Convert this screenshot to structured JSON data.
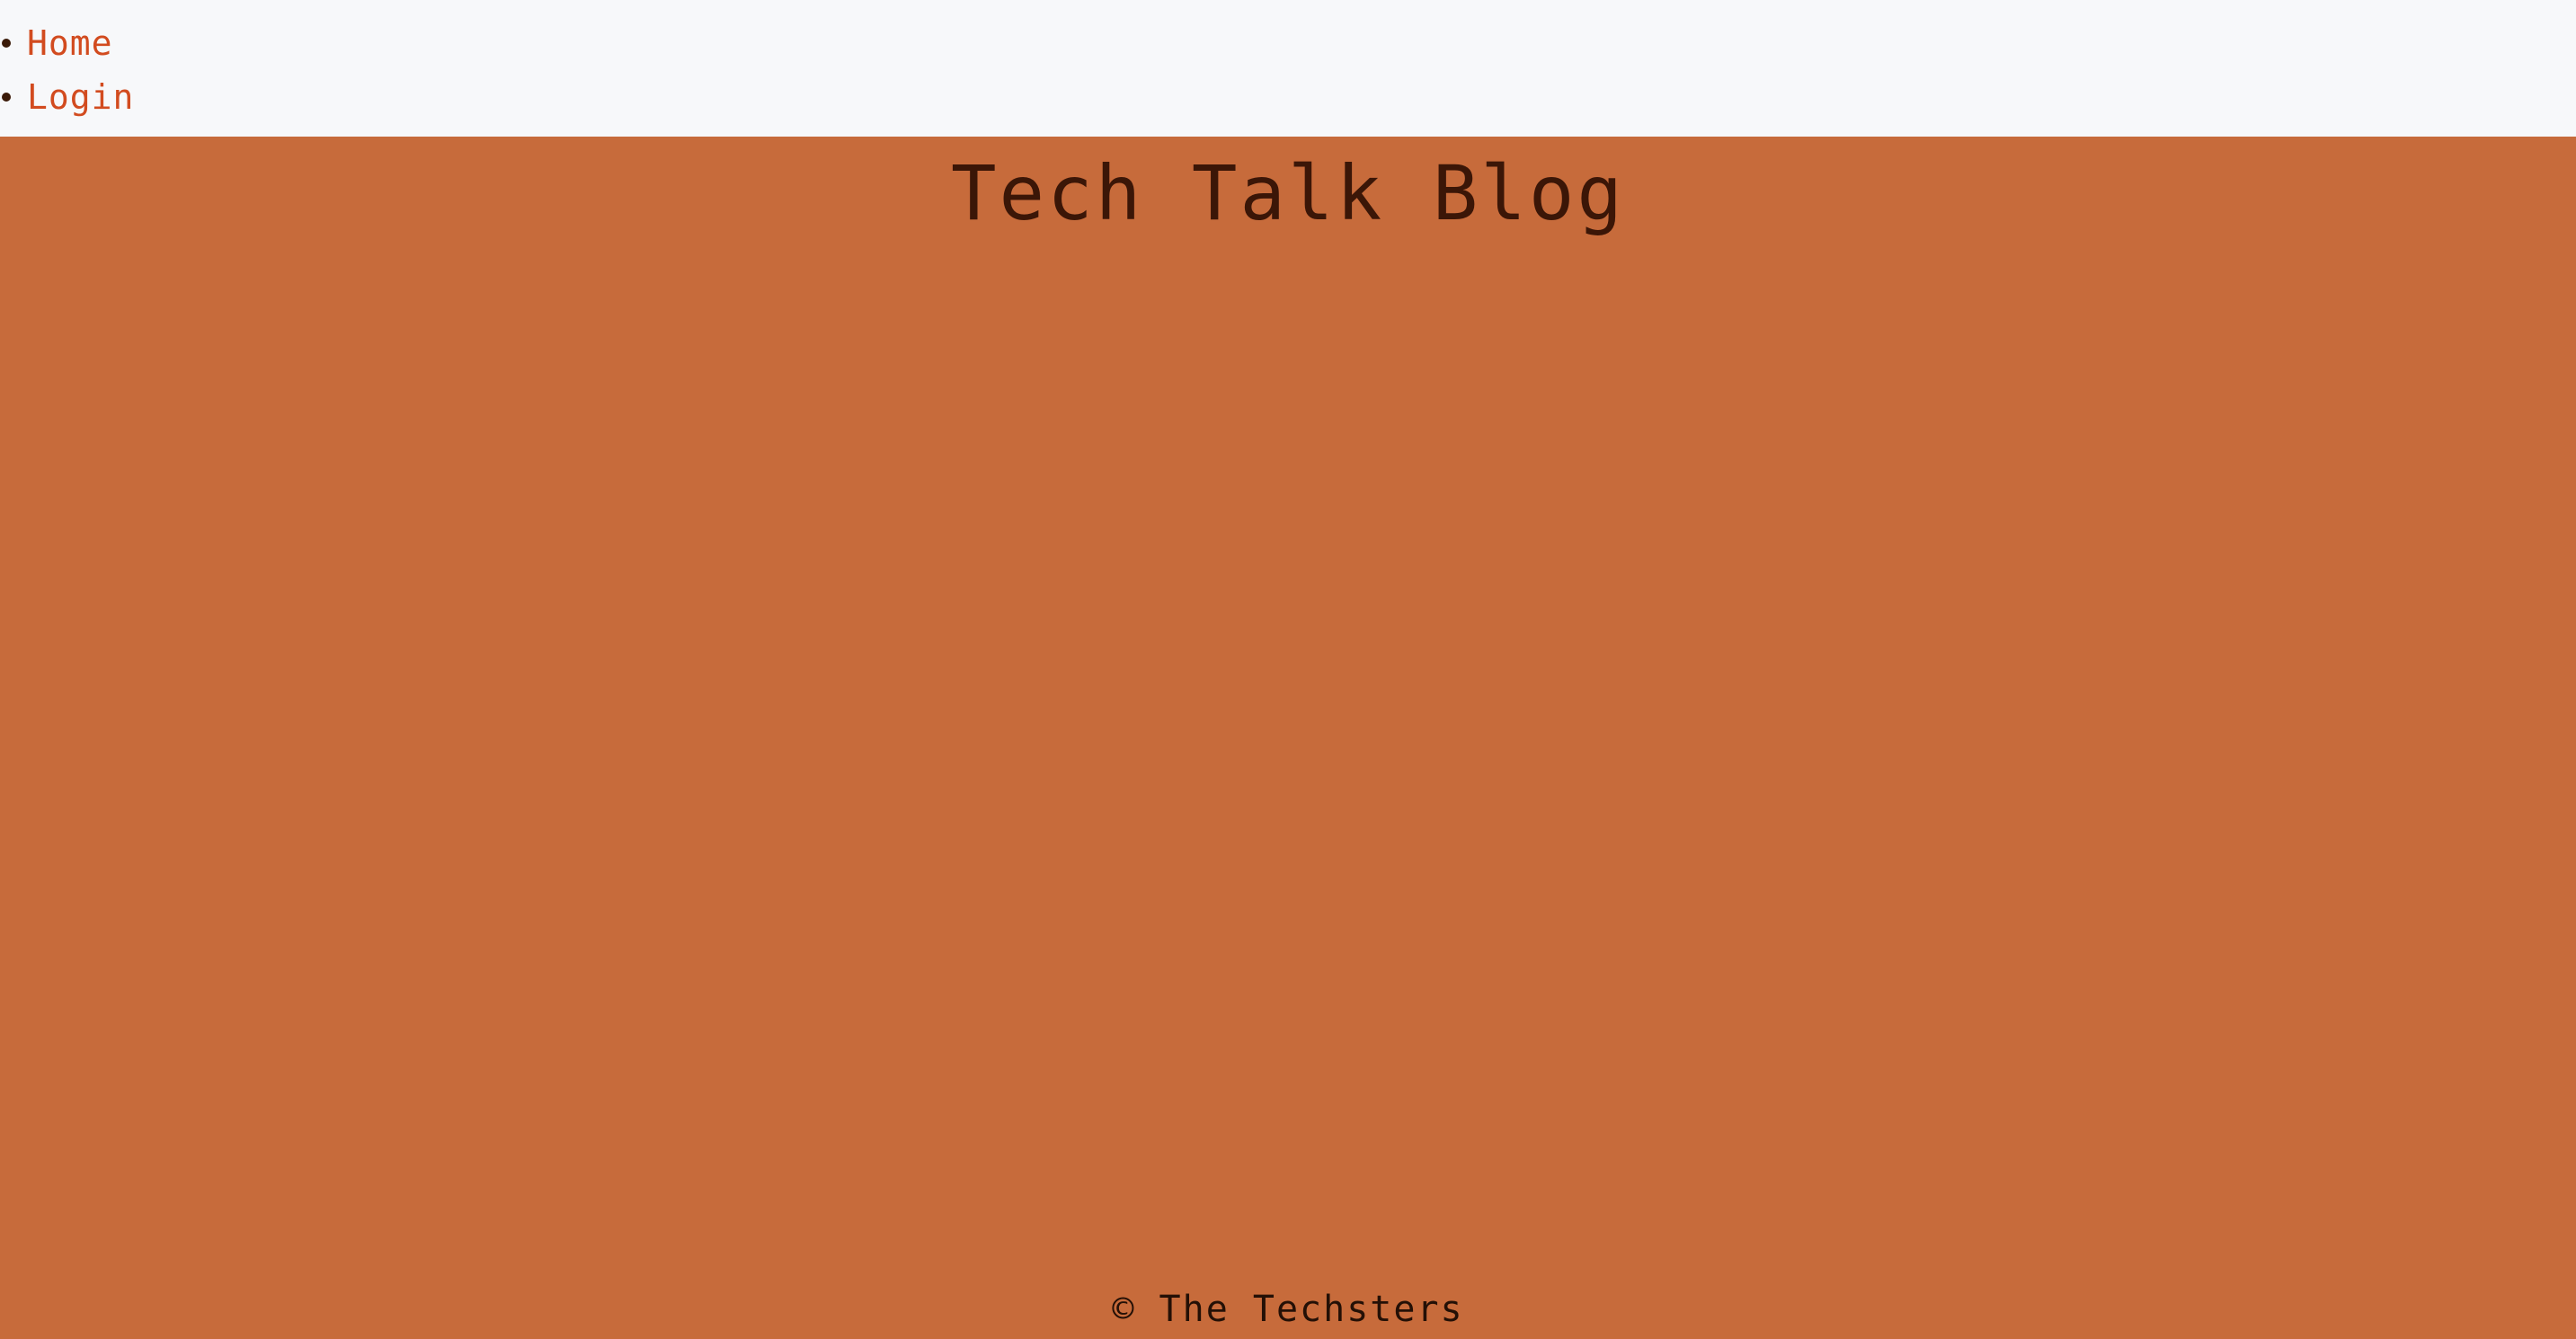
{
  "nav": {
    "items": [
      {
        "label": "Home"
      },
      {
        "label": "Login"
      }
    ]
  },
  "hero": {
    "title": "Tech Talk Blog"
  },
  "footer": {
    "copyright": "© The Techsters"
  },
  "colors": {
    "nav_background": "#f7f8fa",
    "page_background": "#c76b3b",
    "link": "#d24b1f",
    "title": "#3b1607",
    "footer_text": "#241006",
    "bullet": "#3a1a08"
  },
  "icons": {
    "bullet": "bullet-icon"
  }
}
